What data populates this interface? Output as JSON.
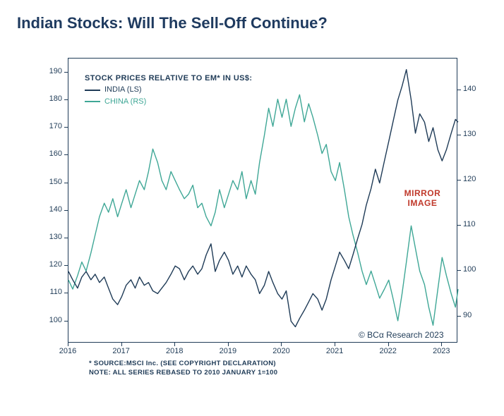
{
  "title": "Indian Stocks: Will The Sell-Off Continue?",
  "legend": {
    "heading": "STOCK PRICES RELATIVE TO EM* IN US$:",
    "series1_label": "INDIA (LS)",
    "series2_label": "CHINA (RS)"
  },
  "annotation": {
    "text": "MIRROR\nIMAGE",
    "color": "#c0392b",
    "x_year": 2022.7,
    "y_left": 144
  },
  "copyright": "© BCα Research 2023",
  "footnote": "* SOURCE:MSCI Inc. (SEE COPYRIGHT DECLARATION)\nNOTE: ALL SERIES REBASED TO 2010 JANUARY 1=100",
  "chart": {
    "type": "line",
    "background_color": "#ffffff",
    "frame_color": "#1f3b57",
    "line_width": 1.4,
    "x_axis": {
      "min": 2016,
      "max": 2023.3,
      "ticks": [
        2016,
        2017,
        2018,
        2019,
        2020,
        2021,
        2022,
        2023
      ],
      "fontsize": 11
    },
    "y_left": {
      "min": 92,
      "max": 195,
      "ticks": [
        100,
        110,
        120,
        130,
        140,
        150,
        160,
        170,
        180,
        190
      ],
      "fontsize": 11
    },
    "y_right": {
      "min": 84,
      "max": 147,
      "ticks": [
        90,
        100,
        110,
        120,
        130,
        140
      ],
      "fontsize": 11
    },
    "series": {
      "india": {
        "color": "#1f3b57",
        "axis": "left",
        "points": [
          [
            2016.0,
            118
          ],
          [
            2016.08,
            115
          ],
          [
            2016.17,
            112
          ],
          [
            2016.25,
            116
          ],
          [
            2016.33,
            118
          ],
          [
            2016.42,
            115
          ],
          [
            2016.5,
            117
          ],
          [
            2016.58,
            114
          ],
          [
            2016.67,
            116
          ],
          [
            2016.75,
            112
          ],
          [
            2016.83,
            108
          ],
          [
            2016.92,
            106
          ],
          [
            2017.0,
            109
          ],
          [
            2017.08,
            113
          ],
          [
            2017.17,
            115
          ],
          [
            2017.25,
            112
          ],
          [
            2017.33,
            116
          ],
          [
            2017.42,
            113
          ],
          [
            2017.5,
            114
          ],
          [
            2017.58,
            111
          ],
          [
            2017.67,
            110
          ],
          [
            2017.75,
            112
          ],
          [
            2017.83,
            114
          ],
          [
            2017.92,
            117
          ],
          [
            2018.0,
            120
          ],
          [
            2018.08,
            119
          ],
          [
            2018.17,
            115
          ],
          [
            2018.25,
            118
          ],
          [
            2018.33,
            120
          ],
          [
            2018.42,
            117
          ],
          [
            2018.5,
            119
          ],
          [
            2018.58,
            124
          ],
          [
            2018.67,
            128
          ],
          [
            2018.75,
            118
          ],
          [
            2018.83,
            122
          ],
          [
            2018.92,
            125
          ],
          [
            2019.0,
            122
          ],
          [
            2019.08,
            117
          ],
          [
            2019.17,
            120
          ],
          [
            2019.25,
            116
          ],
          [
            2019.33,
            120
          ],
          [
            2019.42,
            117
          ],
          [
            2019.5,
            115
          ],
          [
            2019.58,
            110
          ],
          [
            2019.67,
            113
          ],
          [
            2019.75,
            118
          ],
          [
            2019.83,
            114
          ],
          [
            2019.92,
            110
          ],
          [
            2020.0,
            108
          ],
          [
            2020.08,
            111
          ],
          [
            2020.17,
            100
          ],
          [
            2020.25,
            98
          ],
          [
            2020.33,
            101
          ],
          [
            2020.42,
            104
          ],
          [
            2020.5,
            107
          ],
          [
            2020.58,
            110
          ],
          [
            2020.67,
            108
          ],
          [
            2020.75,
            104
          ],
          [
            2020.83,
            108
          ],
          [
            2020.92,
            115
          ],
          [
            2021.0,
            120
          ],
          [
            2021.08,
            125
          ],
          [
            2021.17,
            122
          ],
          [
            2021.25,
            119
          ],
          [
            2021.33,
            124
          ],
          [
            2021.42,
            130
          ],
          [
            2021.5,
            135
          ],
          [
            2021.58,
            142
          ],
          [
            2021.67,
            148
          ],
          [
            2021.75,
            155
          ],
          [
            2021.83,
            150
          ],
          [
            2021.92,
            158
          ],
          [
            2022.0,
            165
          ],
          [
            2022.08,
            172
          ],
          [
            2022.17,
            180
          ],
          [
            2022.25,
            185
          ],
          [
            2022.33,
            191
          ],
          [
            2022.42,
            180
          ],
          [
            2022.5,
            168
          ],
          [
            2022.58,
            175
          ],
          [
            2022.67,
            172
          ],
          [
            2022.75,
            165
          ],
          [
            2022.83,
            170
          ],
          [
            2022.92,
            162
          ],
          [
            2023.0,
            158
          ],
          [
            2023.08,
            162
          ],
          [
            2023.17,
            168
          ],
          [
            2023.25,
            173
          ],
          [
            2023.3,
            172
          ]
        ]
      },
      "china": {
        "color": "#3fa796",
        "axis": "right",
        "points": [
          [
            2016.0,
            98
          ],
          [
            2016.08,
            96
          ],
          [
            2016.17,
            99
          ],
          [
            2016.25,
            102
          ],
          [
            2016.33,
            100
          ],
          [
            2016.42,
            104
          ],
          [
            2016.5,
            108
          ],
          [
            2016.58,
            112
          ],
          [
            2016.67,
            115
          ],
          [
            2016.75,
            113
          ],
          [
            2016.83,
            116
          ],
          [
            2016.92,
            112
          ],
          [
            2017.0,
            115
          ],
          [
            2017.08,
            118
          ],
          [
            2017.17,
            114
          ],
          [
            2017.25,
            117
          ],
          [
            2017.33,
            120
          ],
          [
            2017.42,
            118
          ],
          [
            2017.5,
            122
          ],
          [
            2017.58,
            127
          ],
          [
            2017.67,
            124
          ],
          [
            2017.75,
            120
          ],
          [
            2017.83,
            118
          ],
          [
            2017.92,
            122
          ],
          [
            2018.0,
            120
          ],
          [
            2018.08,
            118
          ],
          [
            2018.17,
            116
          ],
          [
            2018.25,
            117
          ],
          [
            2018.33,
            119
          ],
          [
            2018.42,
            114
          ],
          [
            2018.5,
            115
          ],
          [
            2018.58,
            112
          ],
          [
            2018.67,
            110
          ],
          [
            2018.75,
            113
          ],
          [
            2018.83,
            118
          ],
          [
            2018.92,
            114
          ],
          [
            2019.0,
            117
          ],
          [
            2019.08,
            120
          ],
          [
            2019.17,
            118
          ],
          [
            2019.25,
            122
          ],
          [
            2019.33,
            116
          ],
          [
            2019.42,
            120
          ],
          [
            2019.5,
            117
          ],
          [
            2019.58,
            124
          ],
          [
            2019.67,
            130
          ],
          [
            2019.75,
            136
          ],
          [
            2019.83,
            132
          ],
          [
            2019.92,
            138
          ],
          [
            2020.0,
            134
          ],
          [
            2020.08,
            138
          ],
          [
            2020.17,
            132
          ],
          [
            2020.25,
            136
          ],
          [
            2020.33,
            139
          ],
          [
            2020.42,
            133
          ],
          [
            2020.5,
            137
          ],
          [
            2020.58,
            134
          ],
          [
            2020.67,
            130
          ],
          [
            2020.75,
            126
          ],
          [
            2020.83,
            128
          ],
          [
            2020.92,
            122
          ],
          [
            2021.0,
            120
          ],
          [
            2021.08,
            124
          ],
          [
            2021.17,
            118
          ],
          [
            2021.25,
            112
          ],
          [
            2021.33,
            108
          ],
          [
            2021.42,
            104
          ],
          [
            2021.5,
            100
          ],
          [
            2021.58,
            97
          ],
          [
            2021.67,
            100
          ],
          [
            2021.75,
            97
          ],
          [
            2021.83,
            94
          ],
          [
            2021.92,
            96
          ],
          [
            2022.0,
            98
          ],
          [
            2022.08,
            94
          ],
          [
            2022.17,
            89
          ],
          [
            2022.25,
            95
          ],
          [
            2022.33,
            102
          ],
          [
            2022.42,
            110
          ],
          [
            2022.5,
            105
          ],
          [
            2022.58,
            100
          ],
          [
            2022.67,
            97
          ],
          [
            2022.75,
            92
          ],
          [
            2022.83,
            88
          ],
          [
            2022.92,
            96
          ],
          [
            2023.0,
            103
          ],
          [
            2023.08,
            99
          ],
          [
            2023.17,
            95
          ],
          [
            2023.25,
            92
          ],
          [
            2023.3,
            96
          ]
        ]
      }
    }
  }
}
